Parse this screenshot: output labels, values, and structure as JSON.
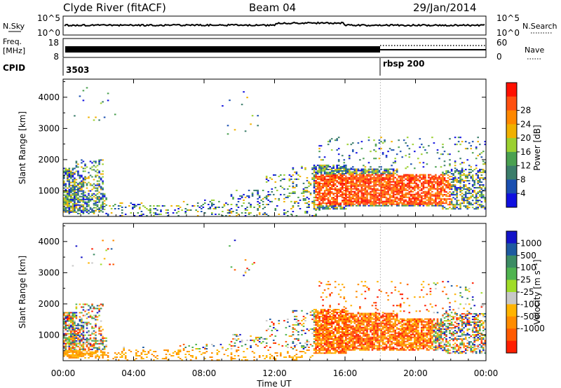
{
  "header": {
    "station": "Clyde River (fitACF)",
    "beam": "Beam 04",
    "date": "29/Jan/2014"
  },
  "top_panels": {
    "nsky_label": "N.Sky",
    "nsky_left_ticks": [
      "10^5",
      "10^0"
    ],
    "nsky_right_ticks": [
      "10^5",
      "10^0"
    ],
    "nsearch_label": "N.Search",
    "freq_label_1": "Freq.",
    "freq_label_2": "[MHz]",
    "freq_ticks": [
      "18",
      "8"
    ],
    "nave_ticks": [
      "60",
      "0"
    ],
    "nave_label": "Nave",
    "cpid_label": "CPID",
    "cpid_1": "3503",
    "cpid_2": "rbsp 200"
  },
  "time_axis": {
    "label": "Time UT",
    "ticks": [
      "00:00",
      "04:00",
      "08:00",
      "12:00",
      "16:00",
      "20:00",
      "00:00"
    ]
  },
  "chart_data": [
    {
      "type": "heatmap",
      "name": "power-panel",
      "ylabel": "Slant Range [km]",
      "y_ticks": [
        "1000",
        "2000",
        "3000",
        "4000"
      ],
      "ylim": [
        180,
        4580
      ],
      "xlim_hours": [
        0,
        24
      ],
      "colorbar_label": "Power [dB]",
      "colorbar_ticks": [
        "4",
        "8",
        "12",
        "16",
        "20",
        "24",
        "28"
      ],
      "colorbar_colors": [
        "#1010e0",
        "#1a4fb0",
        "#3b7d6a",
        "#4aa050",
        "#9bd030",
        "#f0b000",
        "#ff8800",
        "#ff5010",
        "#ff1000"
      ]
    },
    {
      "type": "heatmap",
      "name": "velocity-panel",
      "ylabel": "Slant Range [km]",
      "y_ticks": [
        "1000",
        "2000",
        "3000",
        "4000"
      ],
      "ylim": [
        180,
        4580
      ],
      "xlim_hours": [
        0,
        24
      ],
      "colorbar_label": "Velocity [m s⁻¹]",
      "colorbar_ticks": [
        "1000",
        "500",
        "100",
        "25",
        "-25",
        "-100",
        "-500",
        "-1000"
      ],
      "colorbar_colors": [
        "#1414c8",
        "#1e5aa0",
        "#3c8c64",
        "#50b450",
        "#a0dc28",
        "#c8c8c8",
        "#ffb400",
        "#ff8c00",
        "#ff5a00",
        "#ff1e00"
      ]
    }
  ]
}
